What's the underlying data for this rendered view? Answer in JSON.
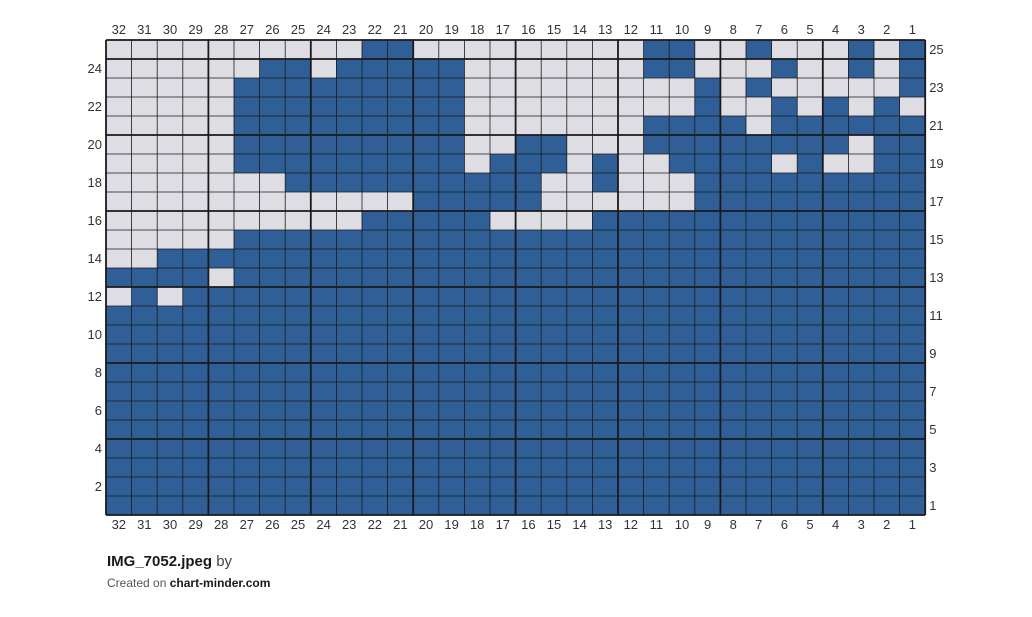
{
  "chart_data": {
    "type": "heatmap",
    "columns": 32,
    "rows": 25,
    "column_labels_left_to_right": [
      "32",
      "31",
      "30",
      "29",
      "28",
      "27",
      "26",
      "25",
      "24",
      "23",
      "22",
      "21",
      "20",
      "19",
      "18",
      "17",
      "16",
      "15",
      "14",
      "13",
      "12",
      "11",
      "10",
      "9",
      "8",
      "7",
      "6",
      "5",
      "4",
      "3",
      "2",
      "1"
    ],
    "left_row_labels": [
      "24",
      "22",
      "20",
      "18",
      "16",
      "14",
      "12",
      "10",
      "8",
      "6",
      "4",
      "2"
    ],
    "right_row_labels": [
      "25",
      "23",
      "21",
      "19",
      "17",
      "15",
      "13",
      "11",
      "9",
      "7",
      "5",
      "3",
      "1"
    ],
    "major_grid_every": 4,
    "colors": {
      "filled": "#2f5f96",
      "empty": "#dedde4",
      "grid": "#1a1a1a"
    },
    "cells_top_to_bottom": [
      "..........XX.........XX..X...X.X",
      "......XX.XXXXX.......XX...X..X.X",
      ".....XXXXXXXXX.........X.X.....X",
      ".....XXXXXXXXX.........X..X.X.X.",
      ".....XXXXXXXXX.......XXXX.XXXXXX",
      ".....XXXXXXXXX..XX...XXXXXXXX.XX",
      ".....XXXXXXXXX.XXX.X..XXXX.X..XX",
      ".......XXXXXXXXXX..X...XXXXXXXXX",
      "............XXXXX......XXXXXXXXX",
      "..........XXXXX....XXXXXXXXXXXXX",
      ".....XXXXXXXXXXXXXXXXXXXXXXXXXXX",
      "..XXXXXXXXXXXXXXXXXXXXXXXXXXXXXX",
      "XXXX.XXXXXXXXXXXXXXXXXXXXXXXXXXX",
      ".X.XXXXXXXXXXXXXXXXXXXXXXXXXXXXX",
      "XXXXXXXXXXXXXXXXXXXXXXXXXXXXXXXX",
      "XXXXXXXXXXXXXXXXXXXXXXXXXXXXXXXX",
      "XXXXXXXXXXXXXXXXXXXXXXXXXXXXXXXX",
      "XXXXXXXXXXXXXXXXXXXXXXXXXXXXXXXX",
      "XXXXXXXXXXXXXXXXXXXXXXXXXXXXXXXX",
      "XXXXXXXXXXXXXXXXXXXXXXXXXXXXXXXX",
      "XXXXXXXXXXXXXXXXXXXXXXXXXXXXXXXX",
      "XXXXXXXXXXXXXXXXXXXXXXXXXXXXXXXX",
      "XXXXXXXXXXXXXXXXXXXXXXXXXXXXXXXX",
      "XXXXXXXXXXXXXXXXXXXXXXXXXXXXXXXX",
      "XXXXXXXXXXXXXXXXXXXXXXXXXXXXXXXX"
    ]
  },
  "footer": {
    "file_name": "IMG_7052.jpeg",
    "by_label": "by",
    "created_prefix": "Created on",
    "site": "chart-minder.com"
  }
}
